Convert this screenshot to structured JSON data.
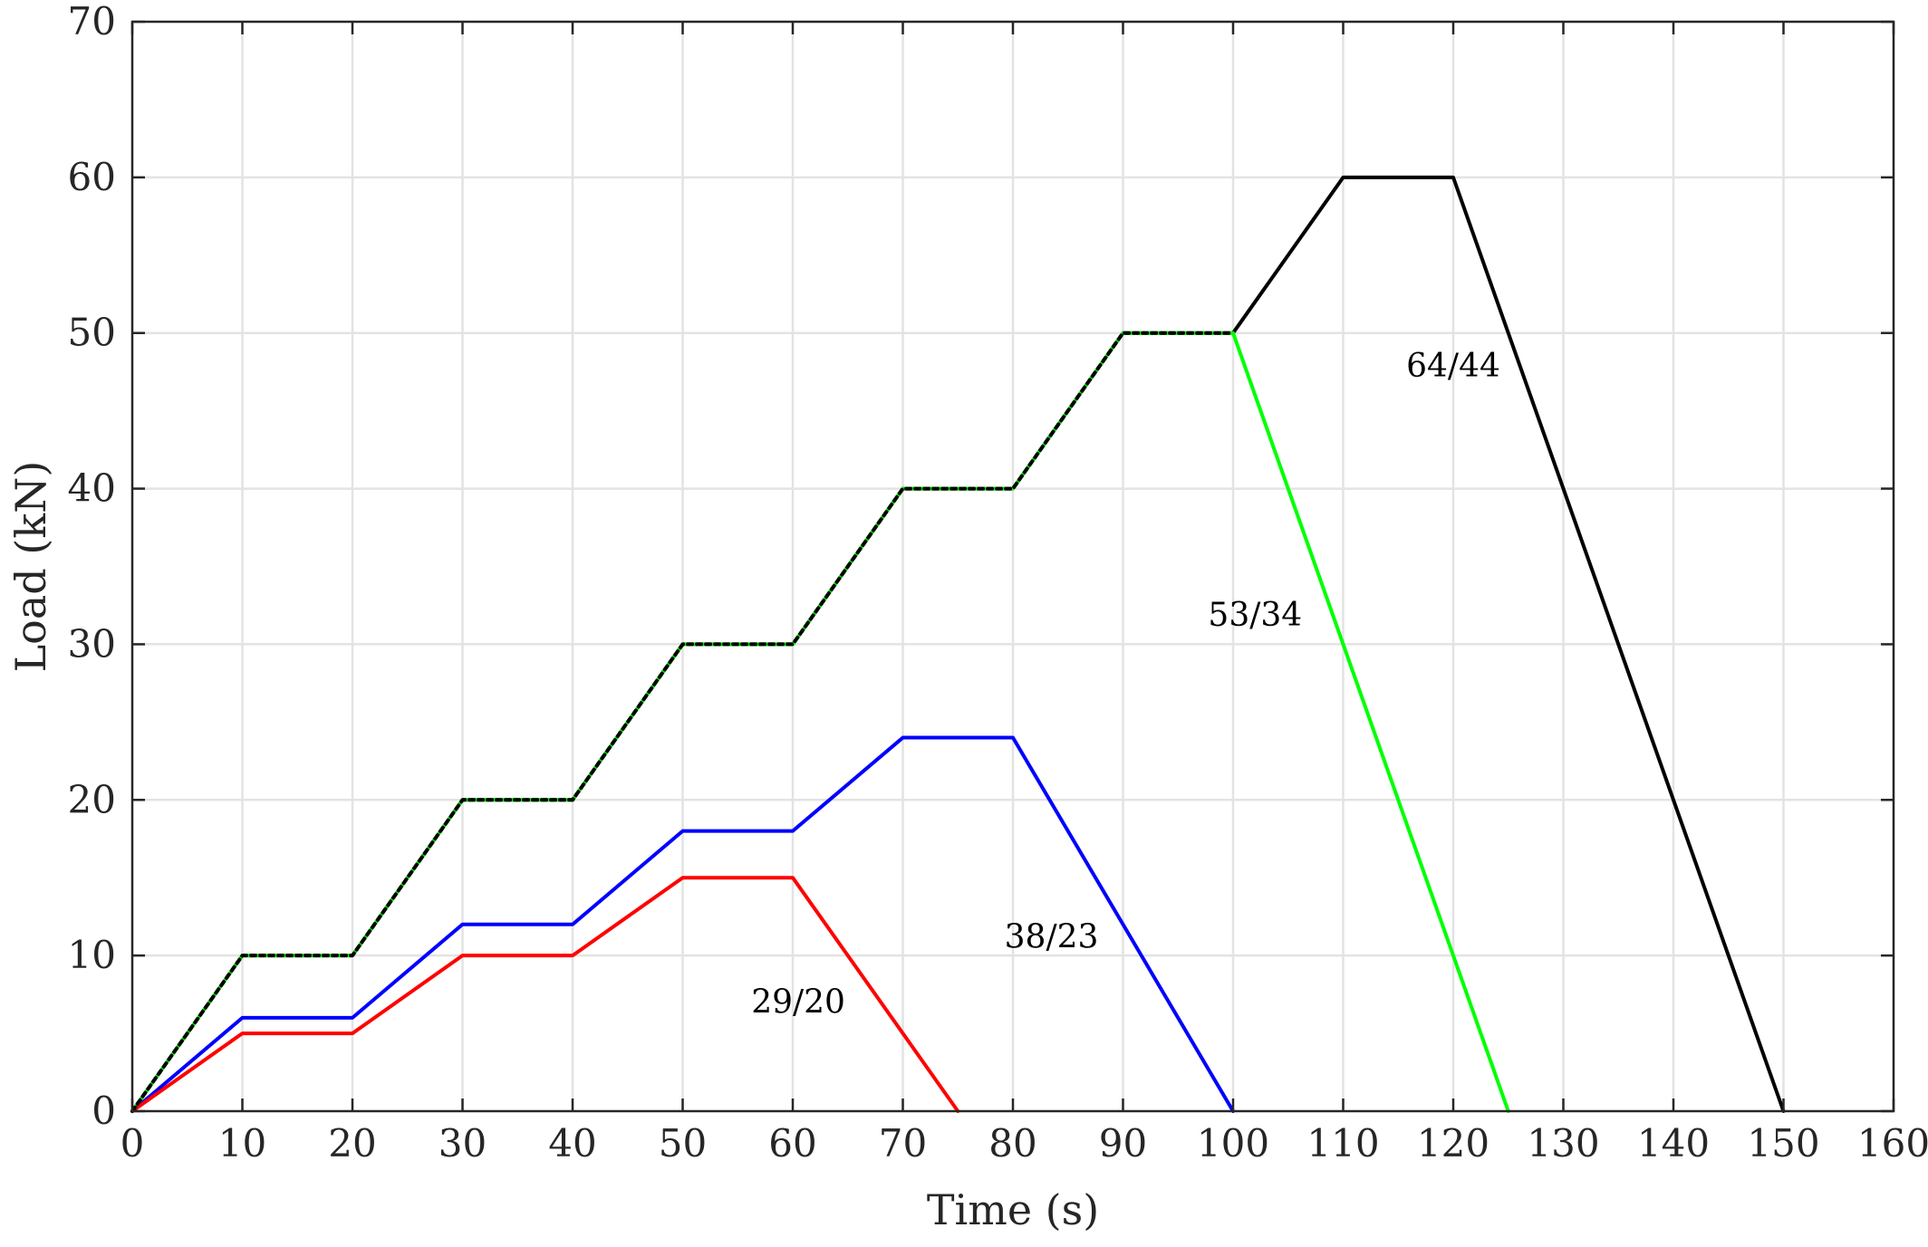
{
  "chart_data": {
    "type": "line",
    "xlabel": "Time (s)",
    "ylabel": "Load (kN)",
    "xlim": [
      0,
      160
    ],
    "ylim": [
      0,
      70
    ],
    "x_ticks": [
      0,
      10,
      20,
      30,
      40,
      50,
      60,
      70,
      80,
      90,
      100,
      110,
      120,
      130,
      140,
      150,
      160
    ],
    "y_ticks": [
      0,
      10,
      20,
      30,
      40,
      50,
      60,
      70
    ],
    "grid": true,
    "series": [
      {
        "color": "#000000",
        "dashed": false,
        "points": [
          [
            0,
            0
          ],
          [
            10,
            10
          ],
          [
            20,
            10
          ],
          [
            30,
            20
          ],
          [
            40,
            20
          ],
          [
            50,
            30
          ],
          [
            60,
            30
          ],
          [
            70,
            40
          ],
          [
            80,
            40
          ],
          [
            90,
            50
          ],
          [
            100,
            50
          ],
          [
            110,
            60
          ],
          [
            120,
            60
          ],
          [
            150,
            0
          ]
        ]
      },
      {
        "color": "#00ff00",
        "dashed": false,
        "points": [
          [
            0,
            0
          ],
          [
            10,
            10
          ],
          [
            20,
            10
          ],
          [
            30,
            20
          ],
          [
            40,
            20
          ],
          [
            50,
            30
          ],
          [
            60,
            30
          ],
          [
            70,
            40
          ],
          [
            80,
            40
          ],
          [
            90,
            50
          ],
          [
            100,
            50
          ],
          [
            125,
            0
          ]
        ]
      },
      {
        "color": "#0000ff",
        "dashed": false,
        "points": [
          [
            0,
            0
          ],
          [
            10,
            6
          ],
          [
            20,
            6
          ],
          [
            30,
            12
          ],
          [
            40,
            12
          ],
          [
            50,
            18
          ],
          [
            60,
            18
          ],
          [
            70,
            24
          ],
          [
            80,
            24
          ],
          [
            100,
            0
          ]
        ]
      },
      {
        "color": "#ff0000",
        "dashed": false,
        "points": [
          [
            0,
            0
          ],
          [
            10,
            5
          ],
          [
            20,
            5
          ],
          [
            30,
            10
          ],
          [
            40,
            10
          ],
          [
            50,
            15
          ],
          [
            60,
            15
          ],
          [
            75,
            0
          ]
        ]
      },
      {
        "color": "#000000",
        "dashed": true,
        "points": [
          [
            0,
            0
          ],
          [
            10,
            10
          ],
          [
            20,
            10
          ],
          [
            30,
            20
          ],
          [
            40,
            20
          ],
          [
            50,
            30
          ],
          [
            60,
            30
          ],
          [
            70,
            40
          ],
          [
            80,
            40
          ],
          [
            90,
            50
          ],
          [
            100,
            50
          ]
        ]
      }
    ],
    "annotations": [
      {
        "text": "29/20",
        "x": 60.5,
        "y": 6.3
      },
      {
        "text": "38/23",
        "x": 83.5,
        "y": 10.5
      },
      {
        "text": "53/34",
        "x": 102,
        "y": 31.2
      },
      {
        "text": "64/44",
        "x": 120,
        "y": 47.2
      }
    ]
  }
}
